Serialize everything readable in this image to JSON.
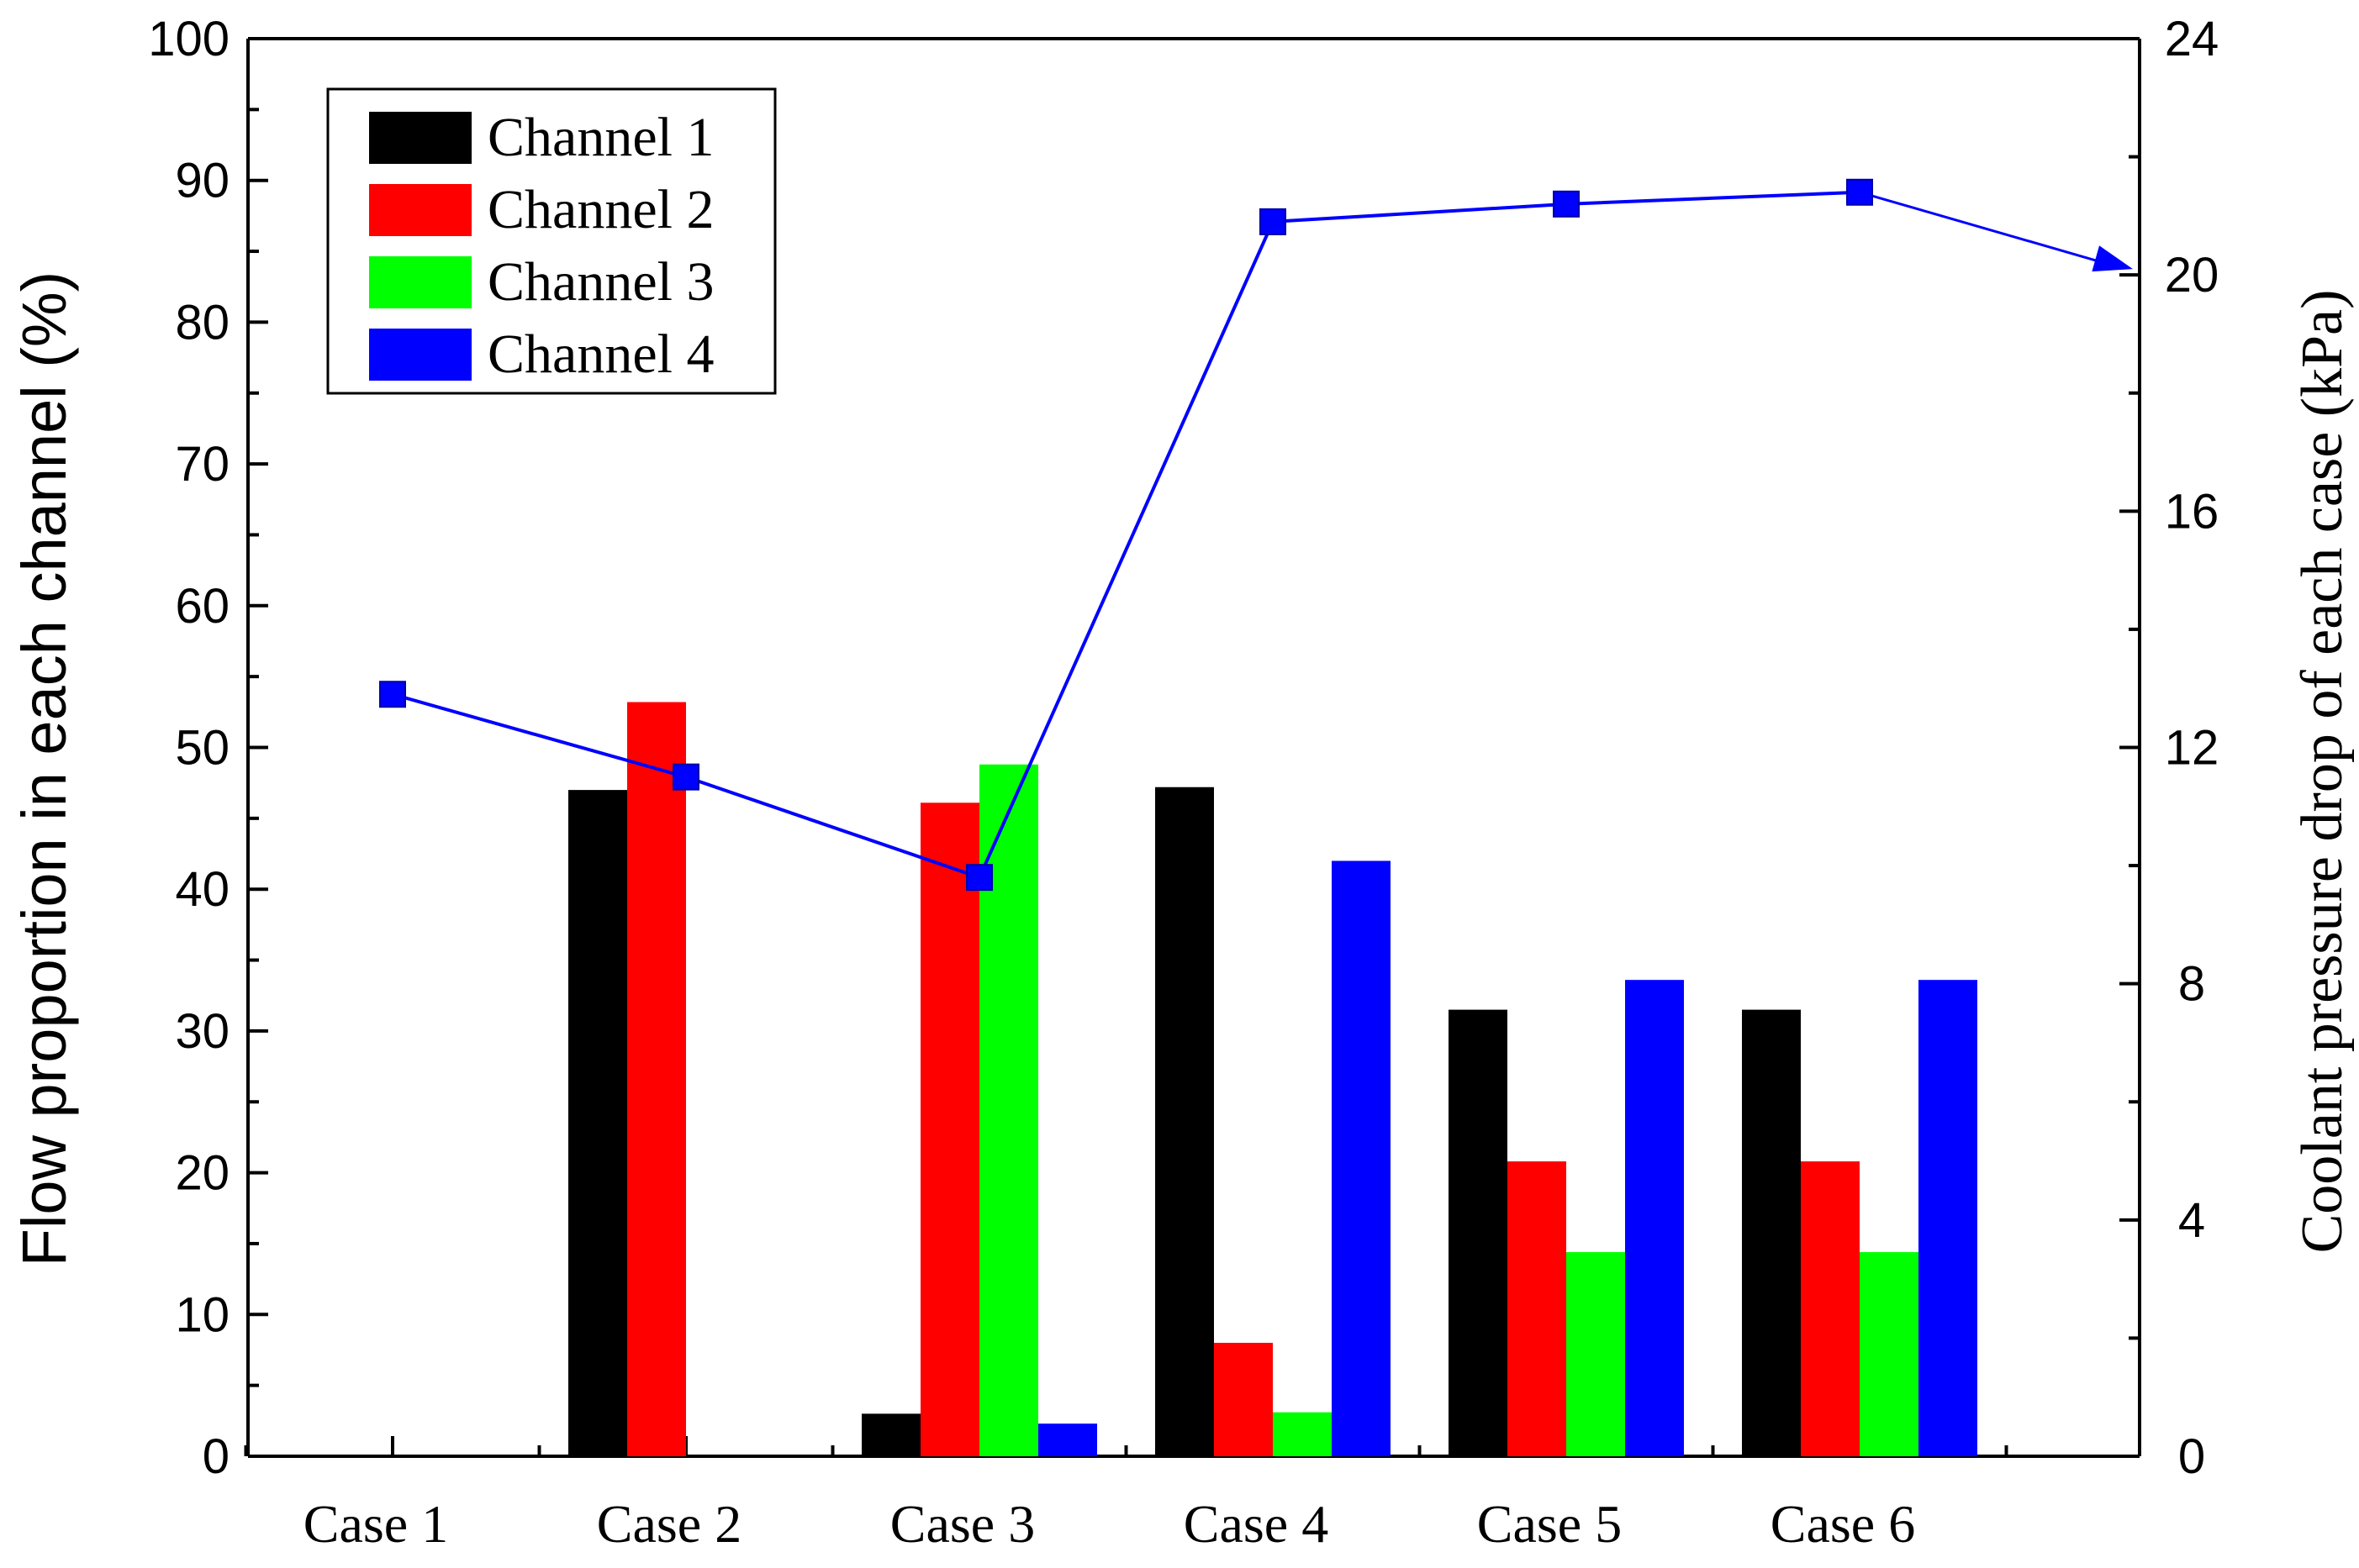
{
  "chart_data": {
    "type": "bar",
    "categories": [
      "Case 1",
      "Case 2",
      "Case 3",
      "Case 4",
      "Case 5",
      "Case 6"
    ],
    "series": [
      {
        "name": "Channel 1",
        "color": "#000000",
        "values": [
          0,
          47,
          3,
          47.2,
          31.5,
          31.5
        ]
      },
      {
        "name": "Channel 2",
        "color": "#ff0000",
        "values": [
          0,
          53.2,
          46.1,
          8,
          20.8,
          20.8
        ]
      },
      {
        "name": "Channel 3",
        "color": "#00ff00",
        "values": [
          0,
          0,
          48.8,
          3.1,
          14.4,
          14.4
        ]
      },
      {
        "name": "Channel 4",
        "color": "#0000ff",
        "values": [
          0,
          0,
          2.3,
          42,
          33.6,
          33.6
        ]
      }
    ],
    "line_series": {
      "name": "Coolant pressure drop",
      "color": "#0000ff",
      "axis": "right",
      "values": [
        12.9,
        11.5,
        9.8,
        20.9,
        21.2,
        21.4
      ],
      "arrow_to": 20.1
    },
    "ylabel": "Flow proportion in each channel (%)",
    "ylabel_right": "Coolant pressure drop of each case (kPa)",
    "xlabel": "",
    "ylim": [
      0,
      100
    ],
    "ylim_right": [
      0,
      24
    ],
    "yticks": [
      "0",
      "10",
      "20",
      "30",
      "40",
      "50",
      "60",
      "70",
      "80",
      "90",
      "100"
    ],
    "yticks_right": [
      "0",
      "4",
      "8",
      "12",
      "16",
      "20",
      "24"
    ],
    "legend_position": "top-left"
  }
}
